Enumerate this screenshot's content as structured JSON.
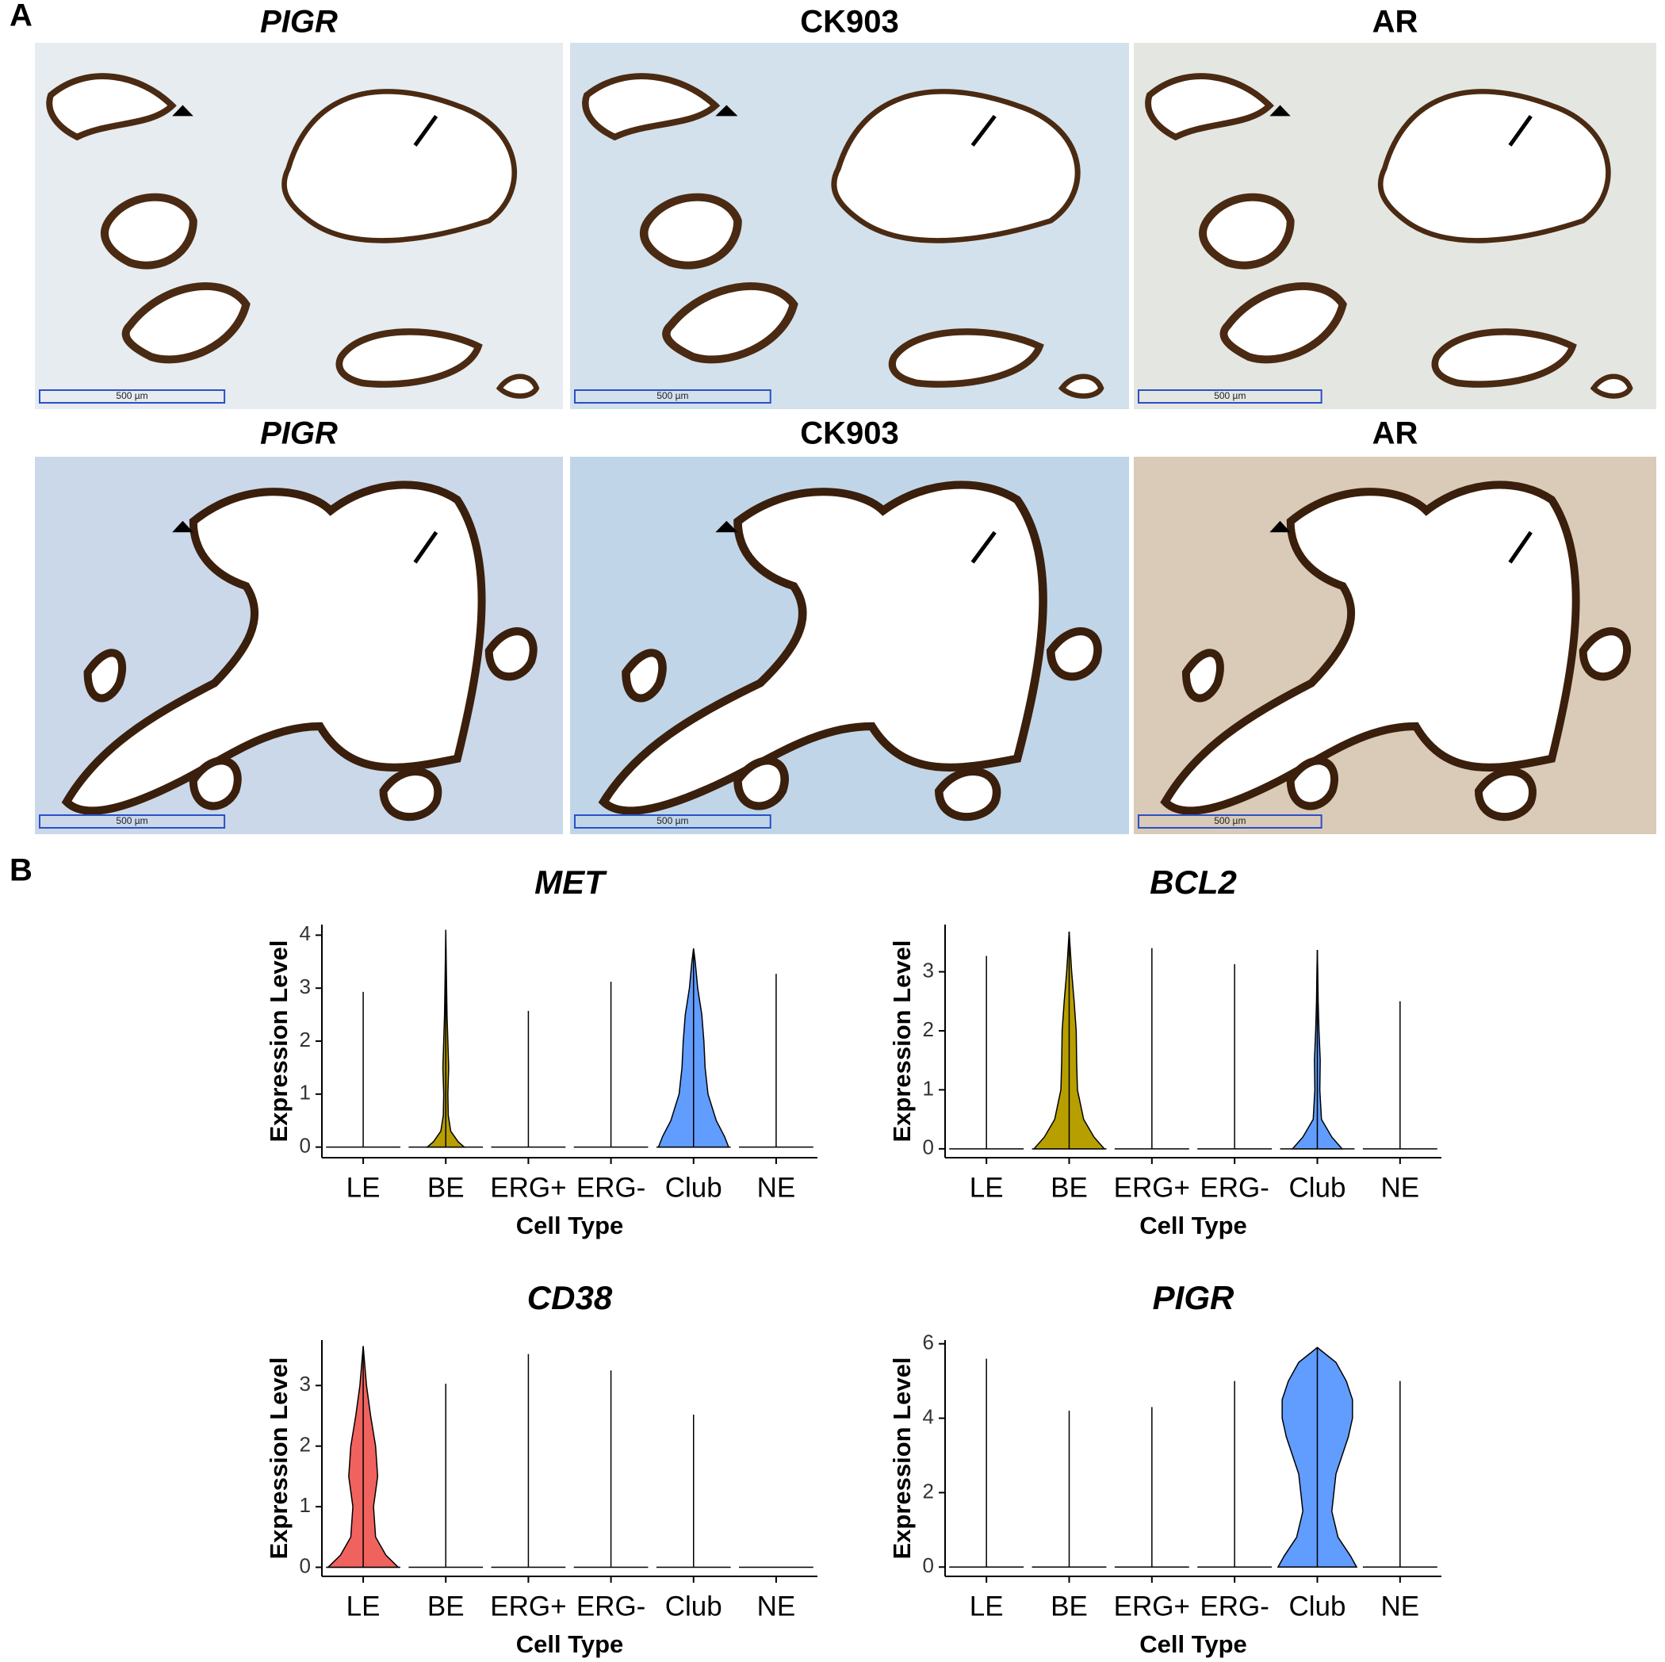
{
  "panel_labels": [
    "A",
    "B"
  ],
  "micrographs": [
    {
      "title": "PIGR",
      "scale_bar": "500 µm"
    },
    {
      "title": "CK903",
      "scale_bar": "500 µm"
    },
    {
      "title": "AR",
      "scale_bar": "500 µm"
    },
    {
      "title": "PIGR",
      "scale_bar": "500 µm"
    },
    {
      "title": "CK903",
      "scale_bar": "500 µm"
    },
    {
      "title": "AR",
      "scale_bar": "500 µm"
    }
  ],
  "chart_data": [
    {
      "type": "violin",
      "title": "MET",
      "x_label": "Cell Type",
      "y_label": "Expression Level",
      "categories": [
        "LE",
        "BE",
        "ERG+",
        "ERG-",
        "Club",
        "NE"
      ],
      "ylim": [
        -0.2,
        4.2
      ],
      "yticks": [
        0,
        1,
        2,
        3,
        4
      ],
      "max": [
        2.93,
        4.1,
        2.57,
        3.12,
        3.75,
        3.27
      ],
      "violins": [
        null,
        {
          "color": "#b79f00",
          "y": [
            0,
            0.1,
            0.3,
            0.6,
            1,
            1.5,
            2,
            2.5,
            3,
            4.1
          ],
          "w": [
            0.45,
            0.3,
            0.12,
            0.06,
            0.05,
            0.07,
            0.05,
            0.03,
            0.02,
            0
          ]
        },
        null,
        null,
        {
          "color": "#619cff",
          "y": [
            0,
            0.2,
            0.5,
            1,
            1.5,
            2,
            2.5,
            3,
            3.5,
            3.75
          ],
          "w": [
            0.85,
            0.75,
            0.55,
            0.35,
            0.28,
            0.25,
            0.2,
            0.1,
            0.04,
            0
          ]
        },
        null
      ]
    },
    {
      "type": "violin",
      "title": "BCL2",
      "x_label": "Cell Type",
      "y_label": "Expression Level",
      "categories": [
        "LE",
        "BE",
        "ERG+",
        "ERG-",
        "Club",
        "NE"
      ],
      "ylim": [
        -0.15,
        3.8
      ],
      "yticks": [
        0,
        1,
        2,
        3
      ],
      "max": [
        3.27,
        3.68,
        3.4,
        3.13,
        3.37,
        2.5
      ],
      "violins": [
        null,
        {
          "color": "#b79f00",
          "y": [
            0,
            0.2,
            0.5,
            1,
            1.5,
            2,
            2.5,
            3,
            3.68
          ],
          "w": [
            0.85,
            0.6,
            0.35,
            0.2,
            0.18,
            0.17,
            0.12,
            0.06,
            0
          ]
        },
        null,
        null,
        {
          "color": "#619cff",
          "y": [
            0,
            0.2,
            0.5,
            1,
            1.5,
            2,
            2.5,
            3,
            3.37
          ],
          "w": [
            0.6,
            0.35,
            0.1,
            0.06,
            0.07,
            0.04,
            0.02,
            0.01,
            0
          ]
        },
        null
      ]
    },
    {
      "type": "violin",
      "title": "CD38",
      "x_label": "Cell Type",
      "y_label": "Expression Level",
      "categories": [
        "LE",
        "BE",
        "ERG+",
        "ERG-",
        "Club",
        "NE"
      ],
      "ylim": [
        -0.15,
        3.75
      ],
      "yticks": [
        0,
        1,
        2,
        3
      ],
      "max": [
        3.65,
        3.03,
        3.52,
        3.25,
        2.52,
        0
      ],
      "violins": [
        {
          "color": "#f0625e",
          "y": [
            0,
            0.2,
            0.5,
            1,
            1.5,
            2,
            2.5,
            3,
            3.65
          ],
          "w": [
            0.85,
            0.55,
            0.3,
            0.25,
            0.35,
            0.3,
            0.18,
            0.08,
            0
          ]
        },
        null,
        null,
        null,
        null,
        null
      ]
    },
    {
      "type": "violin",
      "title": "PIGR",
      "x_label": "Cell Type",
      "y_label": "Expression Level",
      "categories": [
        "LE",
        "BE",
        "ERG+",
        "ERG-",
        "Club",
        "NE"
      ],
      "ylim": [
        -0.25,
        6.1
      ],
      "yticks": [
        0,
        2,
        4,
        6
      ],
      "max": [
        5.6,
        4.2,
        4.3,
        5.0,
        5.9,
        5.0
      ],
      "violins": [
        null,
        null,
        null,
        null,
        {
          "color": "#619cff",
          "y": [
            0,
            0.3,
            0.8,
            1.5,
            2.5,
            3.5,
            4,
            4.5,
            5,
            5.5,
            5.9
          ],
          "w": [
            0.95,
            0.8,
            0.5,
            0.35,
            0.45,
            0.75,
            0.85,
            0.85,
            0.7,
            0.45,
            0
          ]
        },
        null
      ]
    }
  ]
}
